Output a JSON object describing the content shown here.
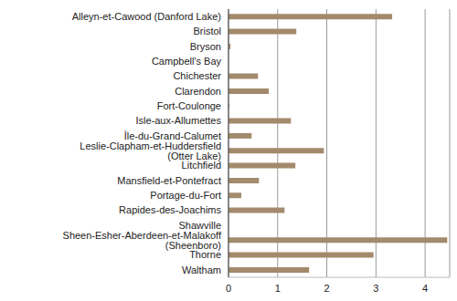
{
  "chart_data": {
    "type": "bar",
    "orientation": "horizontal",
    "categories": [
      "Alleyn-et-Cawood (Danford Lake)",
      "Bristol",
      "Bryson",
      "Campbell's Bay",
      "Chichester",
      "Clarendon",
      "Fort-Coulonge",
      "Isle-aux-Allumettes",
      "Île-du-Grand-Calumet",
      "Leslie-Clapham-et-Huddersfield (Otter Lake)",
      "Litchfield",
      "Mansfield-et-Pontefract",
      "Portage-du-Fort",
      "Rapides-des-Joachims",
      "Shawville",
      "Sheen-Esher-Aberdeen-et-Malakoff (Sheenboro)",
      "Thorne",
      "Waltham"
    ],
    "values": [
      3.33,
      1.38,
      0.04,
      0,
      0.6,
      0.82,
      0.02,
      1.27,
      0.47,
      1.94,
      1.36,
      0.62,
      0.26,
      1.14,
      0,
      4.45,
      2.95,
      1.64
    ],
    "color": "#a38a6c",
    "xlim": [
      0,
      4.5
    ],
    "xticks": [
      0,
      1,
      2,
      3,
      4
    ],
    "grid": true
  }
}
